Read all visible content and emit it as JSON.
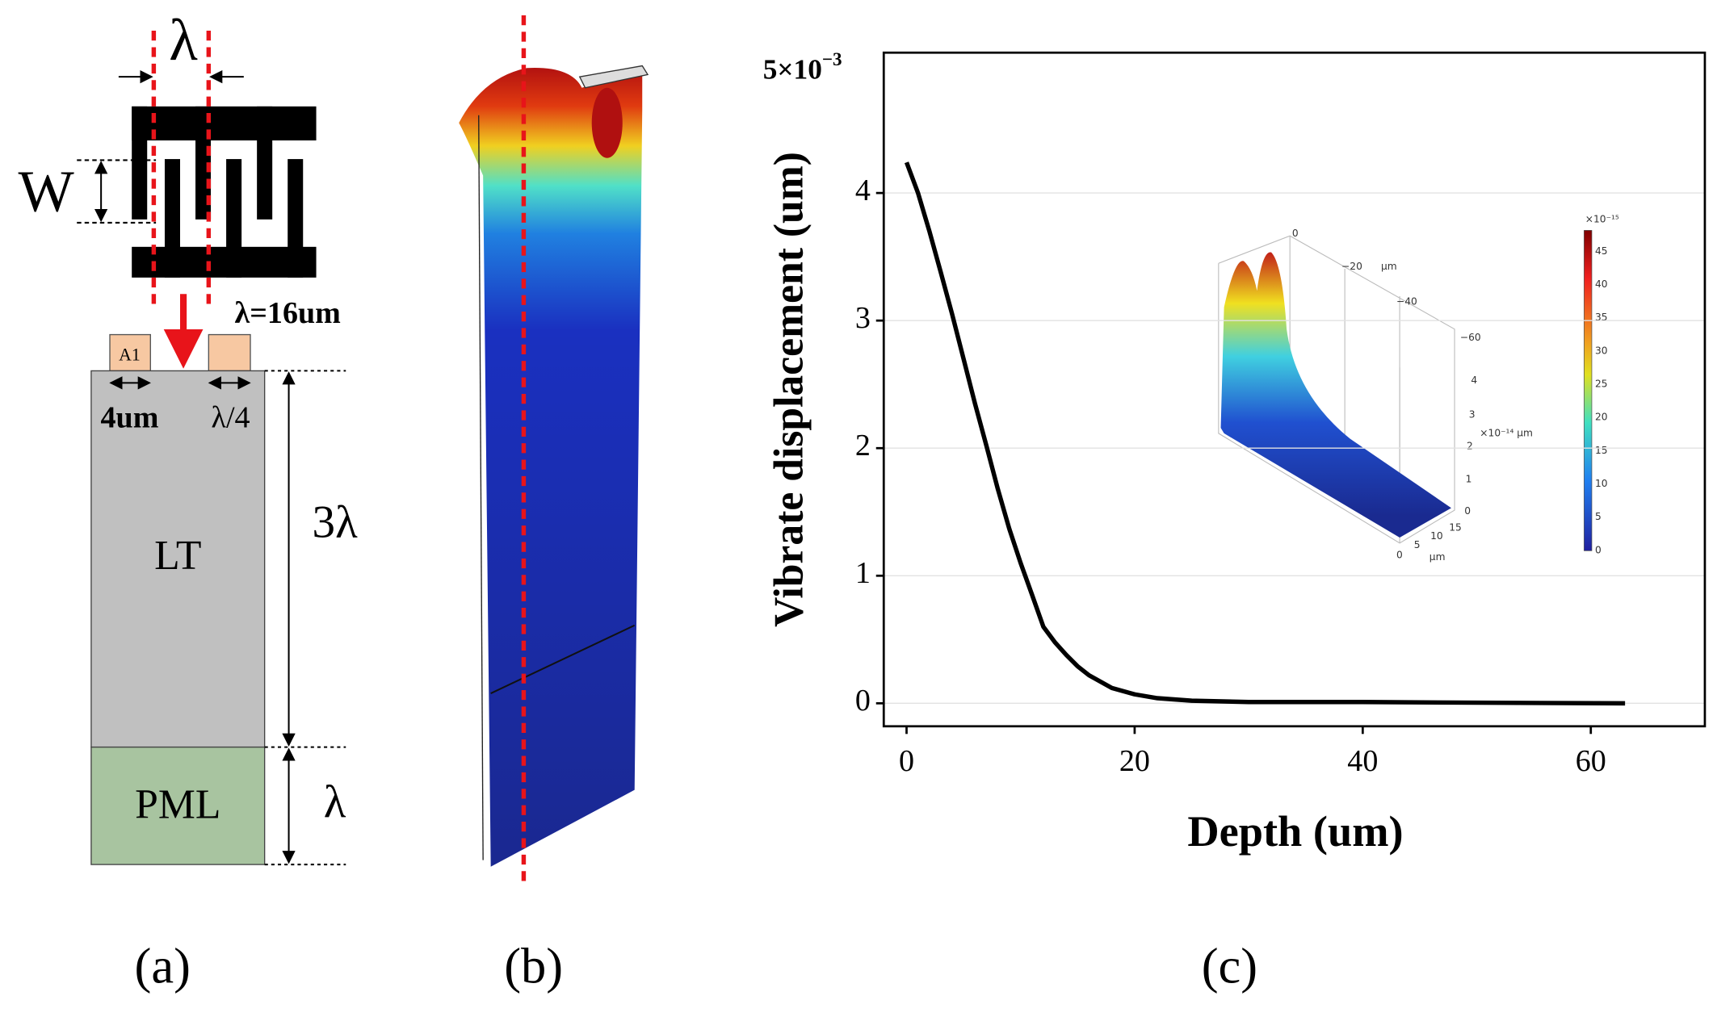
{
  "panels": {
    "a": {
      "label": "(a)",
      "lambda_top": "λ",
      "width_label": "W",
      "lambda_value": "λ=16um",
      "electrode": "A1",
      "electrode_width": "4um",
      "gap_width": "λ/4",
      "substrate_depth": "3λ",
      "substrate": "LT",
      "pml": "PML",
      "pml_depth": "λ"
    },
    "b": {
      "label": "(b)"
    },
    "c": {
      "label": "(c)"
    }
  },
  "chart_data": {
    "type": "line",
    "x_label": "Depth (um)",
    "y_label": "Vibrate displacement (um)",
    "y_scale_base": "5×10",
    "y_scale_exponent": "−3",
    "x": [
      0,
      1,
      2,
      3,
      4,
      5,
      6,
      7,
      8,
      9,
      10,
      11,
      12,
      13,
      14,
      15,
      16,
      18,
      20,
      22,
      25,
      30,
      40,
      50,
      63
    ],
    "values": [
      4.24,
      4.0,
      3.7,
      3.38,
      3.05,
      2.7,
      2.35,
      2.02,
      1.68,
      1.37,
      1.1,
      0.85,
      0.6,
      0.48,
      0.38,
      0.29,
      0.22,
      0.12,
      0.07,
      0.04,
      0.02,
      0.01,
      0.01,
      0.005,
      0
    ],
    "color": "#000000",
    "xlim": [
      -2,
      70
    ],
    "ylim": [
      -0.18,
      5.1
    ],
    "xticks": [
      0,
      20,
      40,
      60
    ],
    "yticks": [
      0,
      1,
      2,
      3,
      4
    ],
    "grid": true
  },
  "inset": {
    "y_ticks": [
      "0",
      "−20",
      "−40",
      "−60"
    ],
    "y_unit": "μm",
    "z_ticks": [
      "4",
      "3",
      "2",
      "1",
      "0"
    ],
    "z_unit": "×10⁻¹⁴ μm",
    "x_ticks": [
      "0",
      "5",
      "10",
      "15"
    ],
    "x_unit": "μm",
    "colorbar_unit": "×10⁻¹⁵",
    "colorbar_ticks": [
      "45",
      "40",
      "35",
      "30",
      "25",
      "20",
      "15",
      "10",
      "5",
      "0"
    ]
  }
}
